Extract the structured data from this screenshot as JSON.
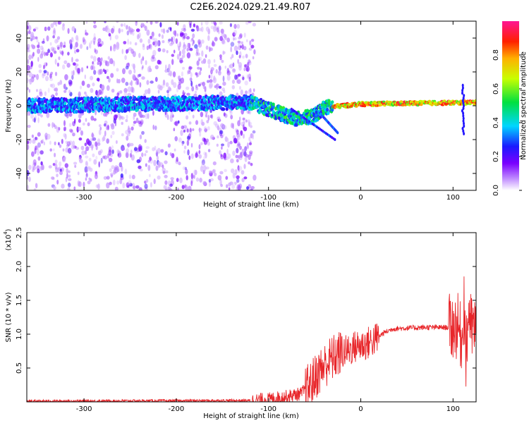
{
  "title": "C2E6.2024.029.21.49.R07",
  "chart_data": [
    {
      "type": "heatmap",
      "xlabel": "Height of straight line (km)",
      "ylabel": "Frequency (Hz)",
      "xlim": [
        -362,
        125
      ],
      "ylim": [
        -50,
        50
      ],
      "xticks": [
        -300,
        -200,
        -100,
        0,
        100
      ],
      "yticks": [
        -40,
        -20,
        0,
        20,
        40
      ],
      "xtick_labels": [
        "-300",
        "-200",
        "-100",
        "0",
        "100"
      ],
      "ytick_labels": [
        "-40",
        "-20",
        "0",
        "20",
        "40"
      ],
      "colorbar": {
        "label": "Normalized spectral amplitude",
        "range": [
          0,
          1
        ],
        "ticks": [
          0.0,
          0.2,
          0.4,
          0.6,
          0.8
        ],
        "tick_labels": [
          "0.0",
          "0.2",
          "0.4",
          "0.6",
          "0.8"
        ],
        "colormap": "rainbow"
      },
      "ridge": [
        {
          "x": -362,
          "f": 0
        },
        {
          "x": -120,
          "f": 2
        },
        {
          "x": -90,
          "f": -4
        },
        {
          "x": -70,
          "f": -8
        },
        {
          "x": -50,
          "f": -6
        },
        {
          "x": -40,
          "f": -1
        },
        {
          "x": 0,
          "f": 1
        },
        {
          "x": 125,
          "f": 2
        }
      ]
    },
    {
      "type": "line",
      "xlabel": "Height of straight line (km)",
      "ylabel": "SNR (10 * v/v)",
      "scale_label": "(x10",
      "scale_exponent": "4",
      "xlim": [
        -362,
        125
      ],
      "ylim": [
        0,
        2.5
      ],
      "xticks": [
        -300,
        -200,
        -100,
        0,
        100
      ],
      "yticks": [
        0.5,
        1.0,
        1.5,
        2.0,
        2.5
      ],
      "xtick_labels": [
        "-300",
        "-200",
        "-100",
        "0",
        "100"
      ],
      "ytick_labels": [
        "0.5",
        "1.0",
        "1.5",
        "2.0",
        "2.5"
      ],
      "series": [
        {
          "color": "#e8262a",
          "points": [
            [
              -362,
              0.01
            ],
            [
              -120,
              0.02
            ],
            [
              -100,
              0.04
            ],
            [
              -80,
              0.08
            ],
            [
              -65,
              0.12
            ],
            [
              -55,
              0.25
            ],
            [
              -45,
              0.45
            ],
            [
              -35,
              0.6
            ],
            [
              -25,
              0.7
            ],
            [
              -15,
              0.75
            ],
            [
              -5,
              0.82
            ],
            [
              5,
              0.85
            ],
            [
              15,
              0.92
            ],
            [
              25,
              1.02
            ],
            [
              35,
              1.08
            ],
            [
              50,
              1.09
            ],
            [
              70,
              1.1
            ],
            [
              95,
              1.1
            ],
            [
              105,
              1.12
            ],
            [
              110,
              0.9
            ],
            [
              112,
              1.6
            ],
            [
              114,
              0.6
            ],
            [
              117,
              1.4
            ],
            [
              120,
              1.07
            ],
            [
              125,
              1.07
            ]
          ],
          "noise": [
            {
              "x_from": -362,
              "x_to": -120,
              "amp": 0.02
            },
            {
              "x_from": -120,
              "x_to": -60,
              "amp": 0.1
            },
            {
              "x_from": -60,
              "x_to": -20,
              "amp": 0.35
            },
            {
              "x_from": -20,
              "x_to": 20,
              "amp": 0.25
            },
            {
              "x_from": 20,
              "x_to": 95,
              "amp": 0.04
            },
            {
              "x_from": 95,
              "x_to": 125,
              "amp": 0.5
            }
          ]
        }
      ]
    }
  ]
}
